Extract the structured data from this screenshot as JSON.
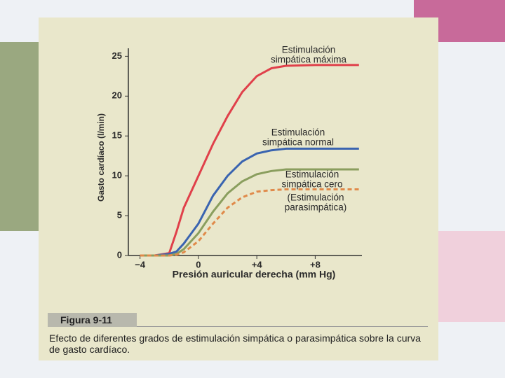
{
  "chart_data": {
    "type": "line",
    "y_label": "Gasto cardíaco (l/min)",
    "x_label": "Presión auricular derecha (mm Hg)",
    "x": [
      -4,
      -3,
      -2,
      -1.5,
      -1,
      0,
      1,
      2,
      3,
      4,
      5,
      6,
      8,
      11
    ],
    "series": [
      {
        "label": [
          "Estimulación",
          "simpática máxima"
        ],
        "color": "#e0404a",
        "dashed": false,
        "values": [
          0,
          0,
          0.3,
          3,
          6,
          10,
          14,
          17.5,
          20.5,
          22.5,
          23.5,
          23.8,
          23.9,
          23.9
        ]
      },
      {
        "label": [
          "Estimulación",
          "simpática normal"
        ],
        "color": "#3a64b0",
        "dashed": false,
        "values": [
          0,
          0,
          0.2,
          0.5,
          1.5,
          4,
          7.5,
          10,
          11.8,
          12.8,
          13.2,
          13.4,
          13.4,
          13.4
        ]
      },
      {
        "label": [
          "Estimulación",
          "simpática cero"
        ],
        "color": "#8a9e5e",
        "dashed": false,
        "values": [
          0,
          0,
          0,
          0.2,
          0.8,
          2.8,
          5.5,
          7.8,
          9.3,
          10.2,
          10.6,
          10.8,
          10.8,
          10.8
        ]
      },
      {
        "label": [
          "(Estimulación",
          "parasimpática)"
        ],
        "color": "#e08a4a",
        "dashed": true,
        "values": [
          0,
          0,
          0,
          0.1,
          0.4,
          1.8,
          4,
          6,
          7.3,
          8,
          8.2,
          8.3,
          8.3,
          8.3
        ]
      }
    ],
    "xlim": [
      -4.8,
      11.2
    ],
    "ylim": [
      0,
      26
    ],
    "xticks": [
      {
        "value": -4,
        "label": "−4"
      },
      0,
      {
        "value": 4,
        "label": "+4"
      },
      {
        "value": 8,
        "label": "+8"
      }
    ],
    "yticks": [
      0,
      5,
      10,
      15,
      20,
      25
    ],
    "figure_label": "Figura 9-11",
    "caption": "Efecto de diferentes grados de estimulación simpática o parasimpática sobre la curva de gasto cardíaco."
  }
}
